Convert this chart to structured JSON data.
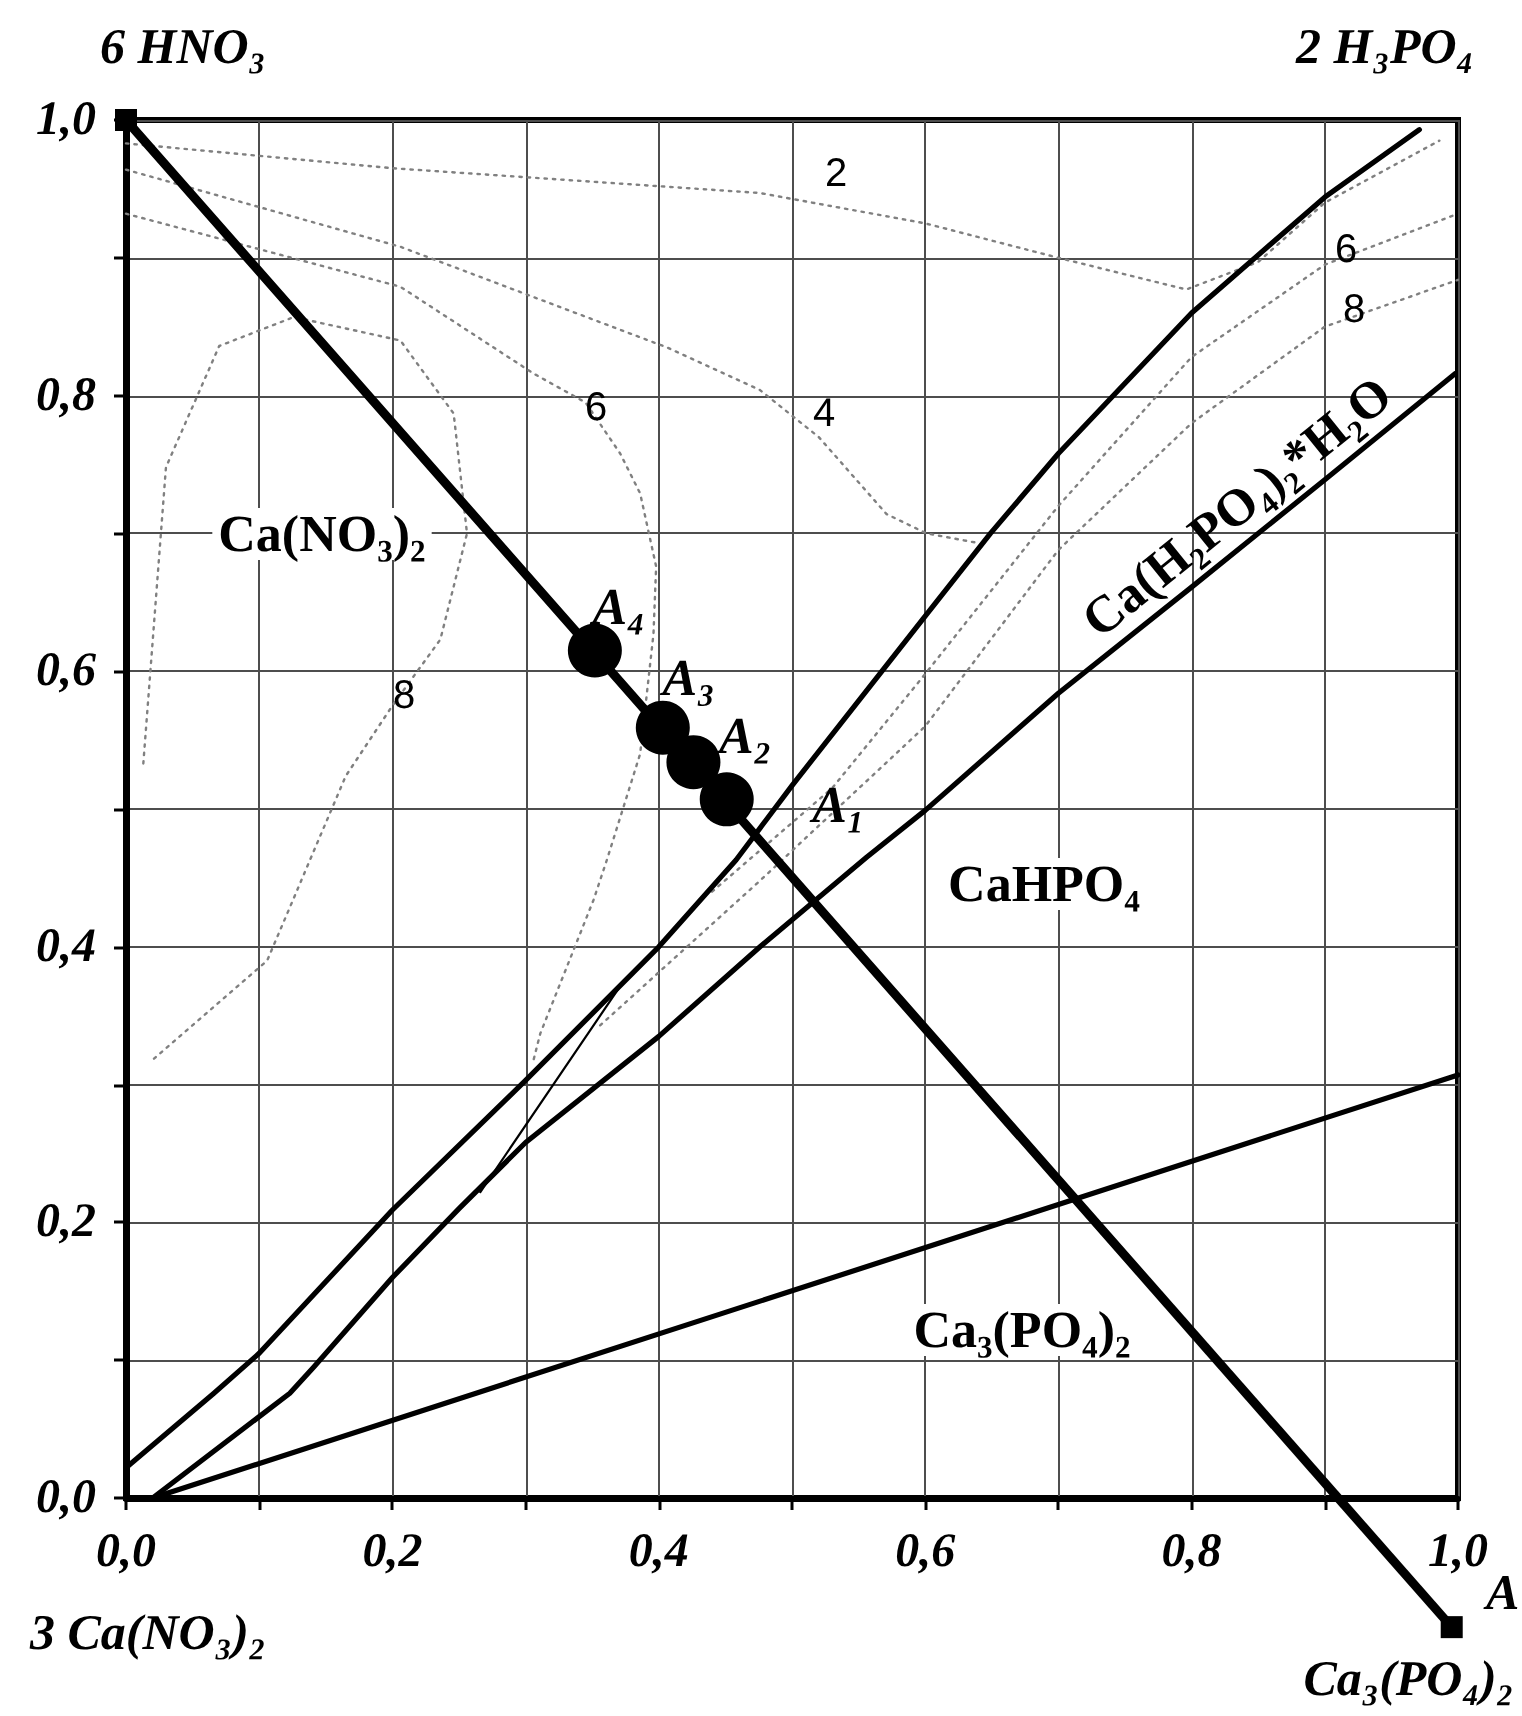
{
  "chart_data": {
    "type": "line",
    "xlim": [
      0,
      1.0
    ],
    "ylim": [
      0,
      1.0
    ],
    "xticks": [
      {
        "value": 0,
        "label": "0,0"
      },
      {
        "value": 0.1,
        "label": null
      },
      {
        "value": 0.2,
        "label": "0,2"
      },
      {
        "value": 0.3,
        "label": null
      },
      {
        "value": 0.4,
        "label": "0,4"
      },
      {
        "value": 0.5,
        "label": null
      },
      {
        "value": 0.6,
        "label": "0,6"
      },
      {
        "value": 0.7,
        "label": null
      },
      {
        "value": 0.8,
        "label": "0,8"
      },
      {
        "value": 0.9,
        "label": null
      },
      {
        "value": 1.0,
        "label": "1,0"
      }
    ],
    "yticks": [
      {
        "value": 0,
        "label": "0,0"
      },
      {
        "value": 0.1,
        "label": null
      },
      {
        "value": 0.2,
        "label": "0,2"
      },
      {
        "value": 0.3,
        "label": null
      },
      {
        "value": 0.4,
        "label": "0,4"
      },
      {
        "value": 0.5,
        "label": null
      },
      {
        "value": 0.6,
        "label": "0,6"
      },
      {
        "value": 0.7,
        "label": null
      },
      {
        "value": 0.8,
        "label": "0,8"
      },
      {
        "value": 0.9,
        "label": null
      },
      {
        "value": 1.0,
        "label": "1,0"
      }
    ],
    "grid": true,
    "annotations": [
      {
        "text": "A₁",
        "x": 0.451,
        "y": 0.507
      },
      {
        "text": "A₂",
        "x": 0.426,
        "y": 0.534
      },
      {
        "text": "A₃",
        "x": 0.403,
        "y": 0.559
      },
      {
        "text": "A₄",
        "x": 0.352,
        "y": 0.615
      },
      "Ca(NO₃)₂",
      "CaHPO₄",
      "Ca₃(PO₄)₂",
      "2",
      "4",
      "6",
      "8",
      "6",
      "8",
      "6 HNO₃",
      "2 H₃PO₄",
      "3 Ca(NO₃)₂",
      "Ca₃(PO₄)₂",
      "A"
    ],
    "series": [
      {
        "color": "#000000",
        "x": [
          0,
          0.91
        ],
        "values": [
          1.0,
          0
        ]
      },
      {
        "color": "#000000",
        "x": [
          0,
          0.066,
          0.1,
          0.2,
          0.3,
          0.4,
          0.458,
          0.5,
          0.6,
          0.649,
          0.7,
          0.8,
          0.9,
          0.971
        ],
        "values": [
          0.022,
          0.076,
          0.105,
          0.209,
          0.303,
          0.4,
          0.463,
          0.517,
          0.64,
          0.7,
          0.758,
          0.86,
          0.944,
          0.993
        ]
      },
      {
        "name": "Ca(H₂PO₄)₂*H₂O",
        "color": "#000000",
        "x": [
          0.02,
          0.123,
          0.141,
          0.2,
          0.25,
          0.3,
          0.4,
          0.476,
          0.556,
          0.6,
          0.7,
          0.8,
          0.9,
          0.998
        ],
        "values": [
          0,
          0.076,
          0.095,
          0.16,
          0.21,
          0.258,
          0.335,
          0.4,
          0.465,
          0.499,
          0.584,
          0.661,
          0.739,
          0.816
        ]
      },
      {
        "color": "#000000",
        "x": [
          0.02,
          1.0
        ],
        "values": [
          0,
          0.307
        ]
      },
      {
        "color": "#000000",
        "x": [
          0.266,
          0.37
        ],
        "values": [
          0.222,
          0.37
        ]
      },
      {
        "color": "#808080",
        "line_style": "dotted",
        "x": [
          0,
          0.2,
          0.476,
          0.6,
          0.7,
          0.796,
          0.85,
          0.9,
          0.986
        ],
        "values": [
          0.983,
          0.965,
          0.947,
          0.925,
          0.9,
          0.877,
          0.897,
          0.94,
          0.985
        ]
      },
      {
        "color": "#808080",
        "line_style": "dotted",
        "x": [
          0,
          0.206,
          0.406,
          0.476,
          0.52,
          0.571,
          0.601,
          0.64
        ],
        "values": [
          0.964,
          0.908,
          0.835,
          0.804,
          0.77,
          0.714,
          0.7,
          0.693
        ]
      },
      {
        "color": "#808080",
        "line_style": "dotted",
        "x": [
          0,
          0.206,
          0.306,
          0.345,
          0.371,
          0.386,
          0.398,
          0.396,
          0.386,
          0.361,
          0.351,
          0.311,
          0.306
        ],
        "values": [
          0.932,
          0.879,
          0.816,
          0.795,
          0.758,
          0.729,
          0.676,
          0.627,
          0.54,
          0.463,
          0.434,
          0.337,
          0.318
        ]
      },
      {
        "color": "#808080",
        "line_style": "dotted",
        "x": [
          0.013,
          0.03,
          0.07,
          0.126,
          0.206,
          0.246,
          0.256,
          0.236,
          0.2,
          0.165,
          0.106,
          0.02
        ],
        "values": [
          0.533,
          0.748,
          0.836,
          0.857,
          0.84,
          0.787,
          0.7,
          0.623,
          0.575,
          0.524,
          0.39,
          0.318
        ]
      },
      {
        "color": "#808080",
        "line_style": "dotted",
        "x": [
          0.44,
          0.53,
          0.6,
          0.7,
          0.8,
          0.9,
          1.0
        ],
        "values": [
          0.44,
          0.515,
          0.598,
          0.72,
          0.828,
          0.895,
          0.932
        ]
      },
      {
        "color": "#808080",
        "line_style": "dotted",
        "x": [
          0.356,
          0.476,
          0.6,
          0.7,
          0.8,
          0.9,
          1.0
        ],
        "values": [
          0.343,
          0.448,
          0.56,
          0.688,
          0.78,
          0.85,
          0.884
        ]
      },
      {
        "type": "scatter",
        "color": "#000000",
        "marker": "circle",
        "x": [
          0.451,
          0.426,
          0.403,
          0.352
        ],
        "values": [
          0.507,
          0.534,
          0.559,
          0.615
        ]
      },
      {
        "type": "scatter",
        "color": "#000000",
        "marker": "square",
        "x": [
          0
        ],
        "values": [
          1.0
        ]
      }
    ]
  }
}
